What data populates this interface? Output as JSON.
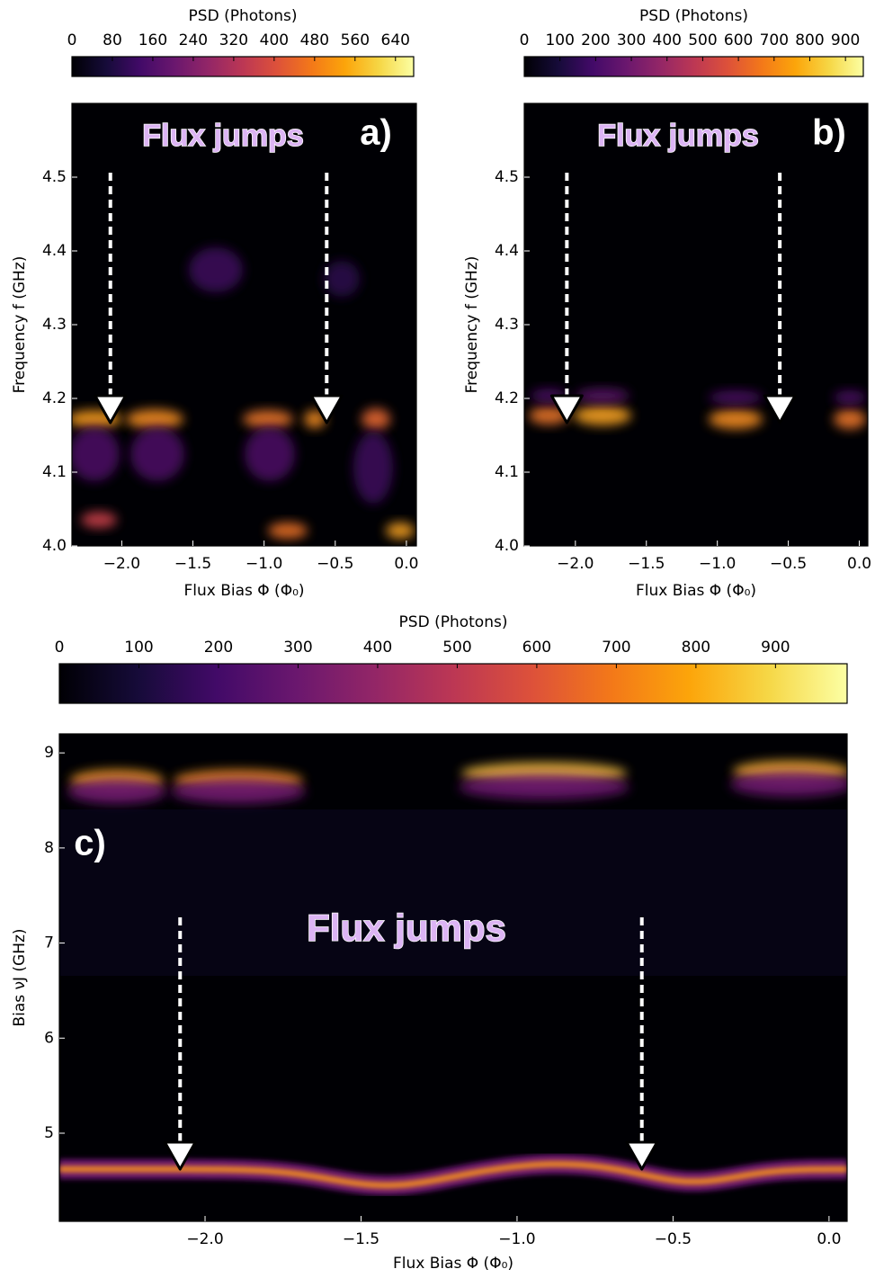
{
  "chart_data": [
    {
      "type": "heatmap",
      "panel_label": "a)",
      "annotation": "Flux jumps",
      "colorbar": {
        "label": "PSD (Photons)",
        "lim": [
          0,
          676
        ],
        "ticks": [
          0,
          80,
          160,
          240,
          320,
          400,
          480,
          560,
          640
        ]
      },
      "xlabel": "Flux Bias Φ (Φ₀)",
      "ylabel": "Frequency f (GHz)",
      "xlim": [
        -2.35,
        0.07
      ],
      "ylim": [
        4.0,
        4.6
      ],
      "xticks": [
        {
          "value": -2.0,
          "label": "−2.0"
        },
        {
          "value": -1.5,
          "label": "−1.5"
        },
        {
          "value": -1.0,
          "label": "−1.0"
        },
        {
          "value": -0.5,
          "label": "−0.5"
        },
        {
          "value": 0.0,
          "label": "0.0"
        }
      ],
      "yticks": [
        {
          "value": 4.0,
          "label": "4.0"
        },
        4.1,
        4.2,
        4.3,
        4.4,
        4.5
      ],
      "jumps": [
        -2.08,
        -0.56
      ]
    },
    {
      "type": "heatmap",
      "panel_label": "b)",
      "annotation": "Flux jumps",
      "colorbar": {
        "label": "PSD (Photons)",
        "lim": [
          0,
          950
        ],
        "ticks": [
          0,
          100,
          200,
          300,
          400,
          500,
          600,
          700,
          800,
          900
        ]
      },
      "xlabel": "Flux Bias Φ (Φ₀)",
      "ylabel": "Frequency f (GHz)",
      "xlim": [
        -2.36,
        0.06
      ],
      "ylim": [
        4.0,
        4.6
      ],
      "xticks": [
        {
          "value": -2.0,
          "label": "−2.0"
        },
        {
          "value": -1.5,
          "label": "−1.5"
        },
        {
          "value": -1.0,
          "label": "−1.0"
        },
        {
          "value": -0.5,
          "label": "−0.5"
        },
        {
          "value": 0.0,
          "label": "0.0"
        }
      ],
      "yticks": [
        {
          "value": 4.0,
          "label": "4.0"
        },
        4.1,
        4.2,
        4.3,
        4.4,
        4.5
      ],
      "jumps": [
        -2.06,
        -0.56
      ]
    },
    {
      "type": "heatmap",
      "panel_label": "c)",
      "annotation": "Flux jumps",
      "colorbar": {
        "label": "PSD (Photons)",
        "lim": [
          0,
          990
        ],
        "ticks": [
          0,
          100,
          200,
          300,
          400,
          500,
          600,
          700,
          800,
          900
        ]
      },
      "xlabel": "Flux Bias Φ (Φ₀)",
      "ylabel": "Bias νJ (GHz)",
      "xlim": [
        -2.467,
        0.058
      ],
      "ylim": [
        4.073,
        9.2
      ],
      "xticks": [
        {
          "value": -2.0,
          "label": "−2.0"
        },
        {
          "value": -1.5,
          "label": "−1.5"
        },
        {
          "value": -1.0,
          "label": "−1.0"
        },
        {
          "value": -0.5,
          "label": "−0.5"
        },
        {
          "value": 0.0,
          "label": "0.0"
        }
      ],
      "yticks": [
        5,
        6,
        7,
        8,
        9
      ],
      "jumps": [
        -2.08,
        -0.6
      ]
    }
  ]
}
